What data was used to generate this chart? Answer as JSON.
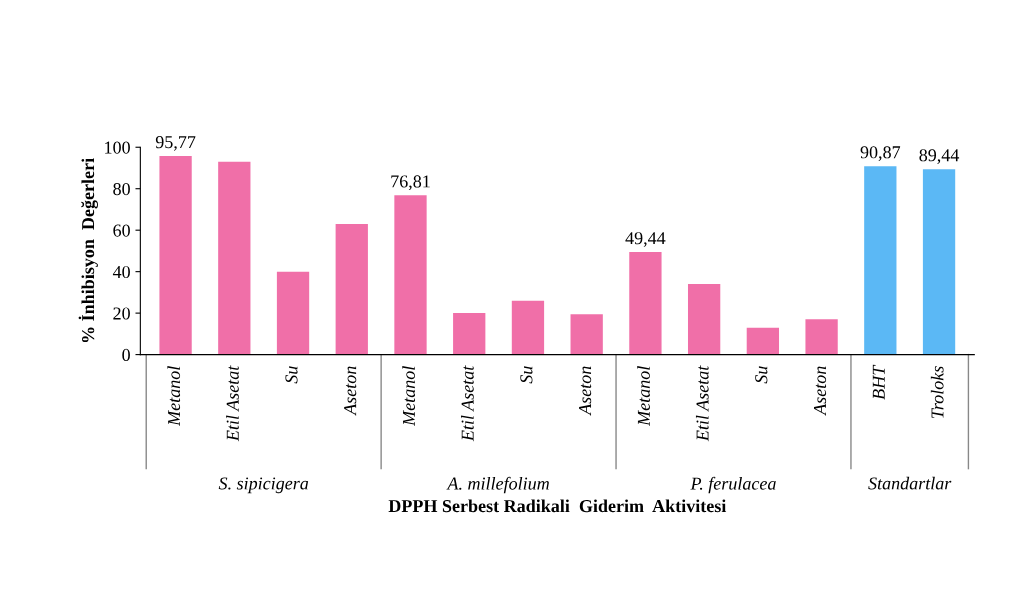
{
  "chart_data": {
    "type": "bar",
    "ylabel": "% İnhibisyon  Değerleri",
    "xlabel": "DPPH Serbest Radikali  Giderim  Aktivitesi",
    "categories": [
      "Metanol",
      "Etil Asetat",
      "Su",
      "Aseton",
      "Metanol",
      "Etil Asetat",
      "Su",
      "Aseton",
      "Metanol",
      "Etil Asetat",
      "Su",
      "Aseton",
      "BHT",
      "Troloks"
    ],
    "series": [
      {
        "color": "#f06fa8",
        "values": [
          95.77,
          93,
          40,
          63,
          76.81,
          20,
          26,
          19.5,
          49.44,
          34,
          13,
          17,
          null,
          null
        ],
        "value_labels": [
          "95,77",
          null,
          null,
          null,
          "76,81",
          null,
          null,
          null,
          "49,44",
          null,
          null,
          null,
          null,
          null
        ]
      },
      {
        "color": "#5bb8f5",
        "values": [
          null,
          null,
          null,
          null,
          null,
          null,
          null,
          null,
          null,
          null,
          null,
          null,
          90.87,
          89.44
        ],
        "value_labels": [
          null,
          null,
          null,
          null,
          null,
          null,
          null,
          null,
          null,
          null,
          null,
          null,
          "90,87",
          "89,44"
        ]
      }
    ],
    "annotations": [
      "S. sipicigera",
      "A. millefolium",
      "P. ferulacea",
      "Standartlar"
    ],
    "ylim": [
      0,
      100
    ],
    "yticks": [
      0,
      20,
      40,
      60,
      80,
      100
    ],
    "grid": false,
    "legend": false
  }
}
